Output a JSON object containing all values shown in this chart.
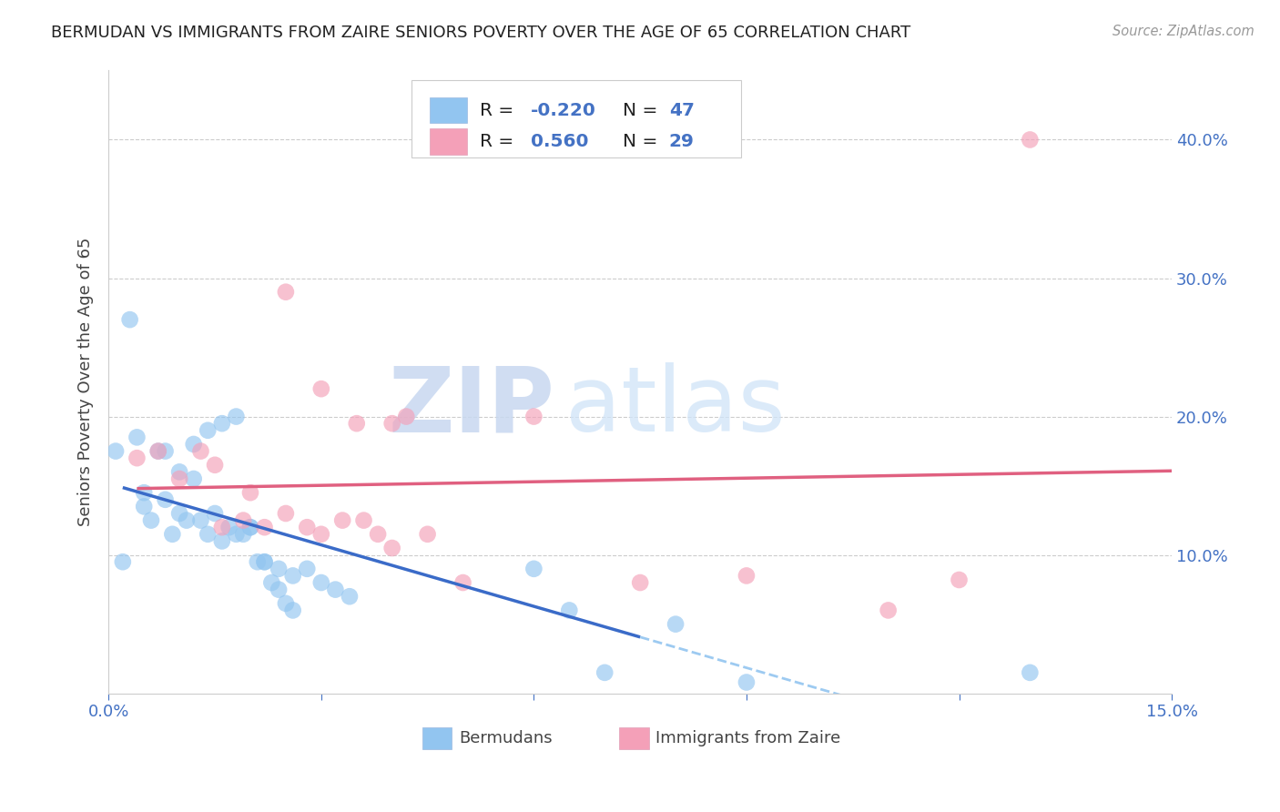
{
  "title": "BERMUDAN VS IMMIGRANTS FROM ZAIRE SENIORS POVERTY OVER THE AGE OF 65 CORRELATION CHART",
  "source": "Source: ZipAtlas.com",
  "ylabel": "Seniors Poverty Over the Age of 65",
  "xlim": [
    0.0,
    0.15
  ],
  "ylim": [
    0.0,
    0.45
  ],
  "xticks": [
    0.0,
    0.03,
    0.06,
    0.09,
    0.12,
    0.15
  ],
  "yticks": [
    0.0,
    0.1,
    0.2,
    0.3,
    0.4
  ],
  "xticklabels": [
    "0.0%",
    "",
    "",
    "",
    "",
    "15.0%"
  ],
  "yticklabels_right": [
    "",
    "10.0%",
    "20.0%",
    "30.0%",
    "40.0%"
  ],
  "blue_R": "-0.220",
  "blue_N": "47",
  "pink_R": "0.560",
  "pink_N": "29",
  "blue_color": "#92C5F0",
  "pink_color": "#F4A0B8",
  "blue_line_color": "#3A6BC8",
  "pink_line_color": "#E06080",
  "watermark_zip": "ZIP",
  "watermark_atlas": "atlas",
  "grid_color": "#cccccc",
  "background_color": "#ffffff",
  "blue_points_x": [
    0.001,
    0.002,
    0.003,
    0.004,
    0.005,
    0.006,
    0.007,
    0.008,
    0.009,
    0.01,
    0.011,
    0.012,
    0.013,
    0.014,
    0.015,
    0.016,
    0.017,
    0.018,
    0.019,
    0.02,
    0.021,
    0.022,
    0.023,
    0.024,
    0.025,
    0.026,
    0.005,
    0.008,
    0.01,
    0.012,
    0.014,
    0.016,
    0.018,
    0.02,
    0.022,
    0.024,
    0.026,
    0.028,
    0.03,
    0.032,
    0.034,
    0.06,
    0.065,
    0.07,
    0.08,
    0.09,
    0.13
  ],
  "blue_points_y": [
    0.175,
    0.095,
    0.27,
    0.185,
    0.135,
    0.125,
    0.175,
    0.175,
    0.115,
    0.13,
    0.125,
    0.18,
    0.125,
    0.115,
    0.13,
    0.11,
    0.12,
    0.115,
    0.115,
    0.12,
    0.095,
    0.095,
    0.08,
    0.075,
    0.065,
    0.06,
    0.145,
    0.14,
    0.16,
    0.155,
    0.19,
    0.195,
    0.2,
    0.12,
    0.095,
    0.09,
    0.085,
    0.09,
    0.08,
    0.075,
    0.07,
    0.09,
    0.06,
    0.015,
    0.05,
    0.008,
    0.015
  ],
  "pink_points_x": [
    0.004,
    0.007,
    0.01,
    0.013,
    0.016,
    0.019,
    0.022,
    0.025,
    0.028,
    0.03,
    0.033,
    0.036,
    0.038,
    0.04,
    0.042,
    0.015,
    0.02,
    0.025,
    0.03,
    0.035,
    0.04,
    0.045,
    0.05,
    0.06,
    0.075,
    0.09,
    0.11,
    0.12,
    0.13
  ],
  "pink_points_y": [
    0.17,
    0.175,
    0.155,
    0.175,
    0.12,
    0.125,
    0.12,
    0.13,
    0.12,
    0.115,
    0.125,
    0.125,
    0.115,
    0.195,
    0.2,
    0.165,
    0.145,
    0.29,
    0.22,
    0.195,
    0.105,
    0.115,
    0.08,
    0.2,
    0.08,
    0.085,
    0.06,
    0.082,
    0.4
  ]
}
